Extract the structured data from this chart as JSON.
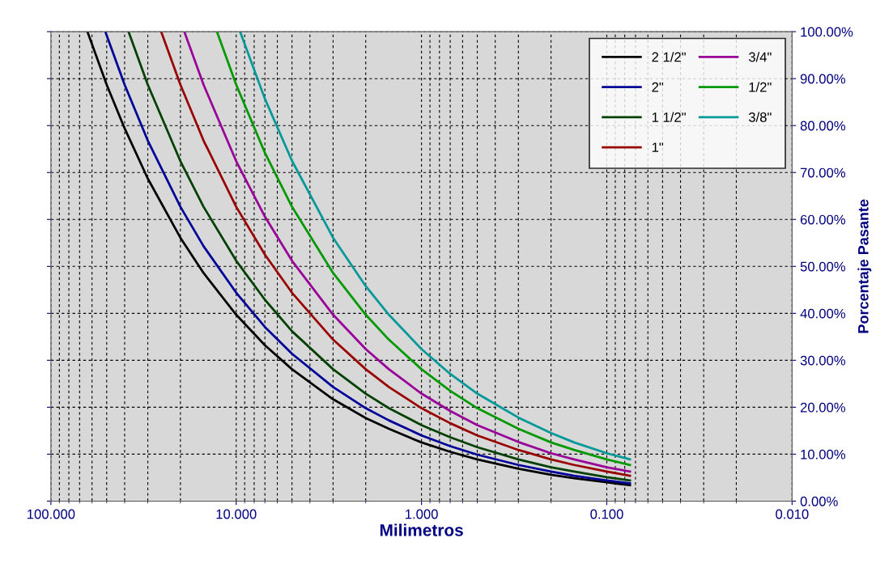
{
  "chart_data": {
    "type": "line",
    "xlabel": "Milimetros",
    "ylabel": "Porcentaje Pasante",
    "log": "x",
    "xlim": [
      100,
      0.01
    ],
    "xticks": [
      {
        "value": 100,
        "label": "100.000"
      },
      {
        "value": 10,
        "label": "10.000"
      },
      {
        "value": 1,
        "label": "1.000"
      },
      {
        "value": 0.1,
        "label": "0.100"
      },
      {
        "value": 0.01,
        "label": "0.010"
      }
    ],
    "ylim": [
      0,
      100
    ],
    "yticks": [
      {
        "value": 0,
        "label": "0.00%"
      },
      {
        "value": 10,
        "label": "10.00%"
      },
      {
        "value": 20,
        "label": "20.00%"
      },
      {
        "value": 30,
        "label": "30.00%"
      },
      {
        "value": 40,
        "label": "40.00%"
      },
      {
        "value": 50,
        "label": "50.00%"
      },
      {
        "value": 60,
        "label": "60.00%"
      },
      {
        "value": 70,
        "label": "70.00%"
      },
      {
        "value": 80,
        "label": "80.00%"
      },
      {
        "value": 90,
        "label": "90.00%"
      },
      {
        "value": 100,
        "label": "100.00%"
      }
    ],
    "grid": true,
    "legend": "top right",
    "marker": "none",
    "line_style": "solid",
    "series": [
      {
        "name": "2 1/2\"",
        "color": "#000000",
        "x": [
          63.5,
          50,
          40,
          30,
          20,
          15,
          10,
          7,
          5,
          3,
          2,
          1.5,
          1,
          0.7,
          0.5,
          0.3,
          0.2,
          0.15,
          0.1,
          0.075
        ],
        "values": [
          100,
          88.7,
          79.4,
          68.7,
          56.1,
          48.6,
          39.7,
          33.2,
          28.1,
          21.7,
          17.7,
          15.4,
          12.5,
          10.5,
          8.9,
          6.9,
          5.6,
          4.9,
          4.0,
          3.4
        ]
      },
      {
        "name": "2\"",
        "color": "#000099",
        "x": [
          50.8,
          50,
          40,
          30,
          20,
          15,
          10,
          7,
          5,
          3,
          2,
          1.5,
          1,
          0.7,
          0.5,
          0.3,
          0.2,
          0.15,
          0.1,
          0.075
        ],
        "values": [
          100,
          99.2,
          88.7,
          76.8,
          62.7,
          54.3,
          44.4,
          37.1,
          31.4,
          24.3,
          19.8,
          17.2,
          14.0,
          11.7,
          9.9,
          7.7,
          6.3,
          5.4,
          4.4,
          3.8
        ]
      },
      {
        "name": "1 1/2\"",
        "color": "#004000",
        "x": [
          38.1,
          30,
          20,
          15,
          10,
          7,
          5,
          3,
          2,
          1.5,
          1,
          0.7,
          0.5,
          0.3,
          0.2,
          0.15,
          0.1,
          0.075
        ],
        "values": [
          100,
          88.7,
          72.4,
          62.7,
          51.2,
          42.9,
          36.2,
          28.1,
          22.9,
          19.8,
          16.2,
          13.6,
          11.5,
          8.9,
          7.2,
          6.3,
          5.1,
          4.4
        ]
      },
      {
        "name": "1\"",
        "color": "#990000",
        "x": [
          25.4,
          20,
          15,
          10,
          7,
          5,
          3,
          2,
          1.5,
          1,
          0.7,
          0.5,
          0.3,
          0.2,
          0.15,
          0.1,
          0.075
        ],
        "values": [
          100,
          88.7,
          76.8,
          62.7,
          52.5,
          44.4,
          34.4,
          28.1,
          24.3,
          19.8,
          16.6,
          14.0,
          10.9,
          8.9,
          7.7,
          6.3,
          5.4
        ]
      },
      {
        "name": "3/4\"",
        "color": "#990099",
        "x": [
          19.05,
          15,
          10,
          7,
          5,
          3,
          2,
          1.5,
          1,
          0.7,
          0.5,
          0.3,
          0.2,
          0.15,
          0.1,
          0.075
        ],
        "values": [
          100,
          88.7,
          72.4,
          60.6,
          51.2,
          39.7,
          32.4,
          28.1,
          22.9,
          19.2,
          16.2,
          12.6,
          10.2,
          8.9,
          7.2,
          6.3
        ]
      },
      {
        "name": "1/2\"",
        "color": "#009900",
        "x": [
          12.7,
          10,
          7,
          5,
          3,
          2,
          1.5,
          1,
          0.7,
          0.5,
          0.3,
          0.2,
          0.15,
          0.1,
          0.075
        ],
        "values": [
          100,
          88.7,
          74.2,
          62.7,
          48.6,
          39.7,
          34.4,
          28.1,
          23.5,
          19.8,
          15.4,
          12.5,
          10.9,
          8.9,
          7.7
        ]
      },
      {
        "name": "3/8\"",
        "color": "#009999",
        "x": [
          9.525,
          7,
          5,
          3,
          2,
          1.5,
          1,
          0.7,
          0.5,
          0.3,
          0.2,
          0.15,
          0.1,
          0.075
        ],
        "values": [
          100,
          85.7,
          72.5,
          56.1,
          45.8,
          39.7,
          32.4,
          27.1,
          22.9,
          17.8,
          14.5,
          12.5,
          10.2,
          8.9
        ]
      }
    ]
  }
}
